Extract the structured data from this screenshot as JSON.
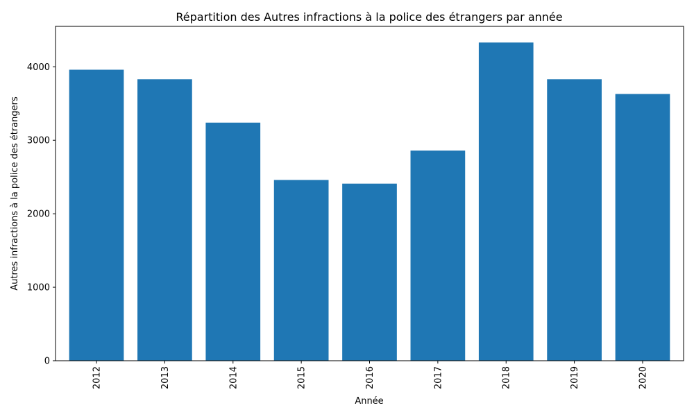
{
  "chart_data": {
    "type": "bar",
    "title": "Répartition des Autres infractions à la police des étrangers par année",
    "xlabel": "Année",
    "ylabel": "Autres infractions à la police des étrangers",
    "categories": [
      "2012",
      "2013",
      "2014",
      "2015",
      "2016",
      "2017",
      "2018",
      "2019",
      "2020"
    ],
    "values": [
      3960,
      3830,
      3240,
      2460,
      2410,
      2860,
      4330,
      3830,
      3630
    ],
    "ylim": [
      0,
      4550
    ],
    "yticks": [
      0,
      1000,
      2000,
      3000,
      4000
    ],
    "ytick_labels": [
      "0",
      "1000",
      "2000",
      "3000",
      "4000"
    ],
    "bar_color": "#1f77b4",
    "grid": false,
    "legend": false,
    "xtick_rotation": "vertical"
  }
}
